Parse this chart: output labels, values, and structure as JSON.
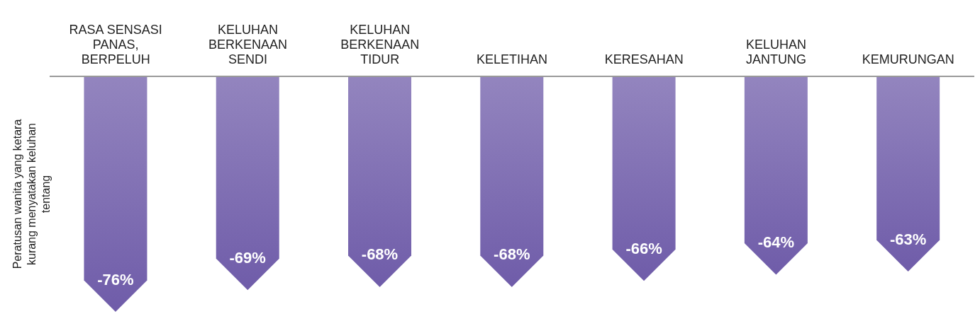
{
  "chart_data": {
    "type": "bar",
    "ylabel": "Peratusan wanita yang ketara kurang menyatakan keluhan tentang",
    "categories": [
      "RASA SENSASI PANAS, BERPELUH",
      "KELUHAN BERKENAAN SENDI",
      "KELUHAN BERKENAAN TIDUR",
      "KELETIHAN",
      "KERESAHAN",
      "KELUHAN JANTUNG",
      "KEMURUNGAN"
    ],
    "values": [
      -76,
      -69,
      -68,
      -68,
      -66,
      -64,
      -63
    ],
    "value_labels": [
      "-76%",
      "-69%",
      "-68%",
      "-68%",
      "-66%",
      "-64%",
      "-63%"
    ],
    "color": "#6f5ca9",
    "relative": false,
    "tick_labels": "x"
  }
}
